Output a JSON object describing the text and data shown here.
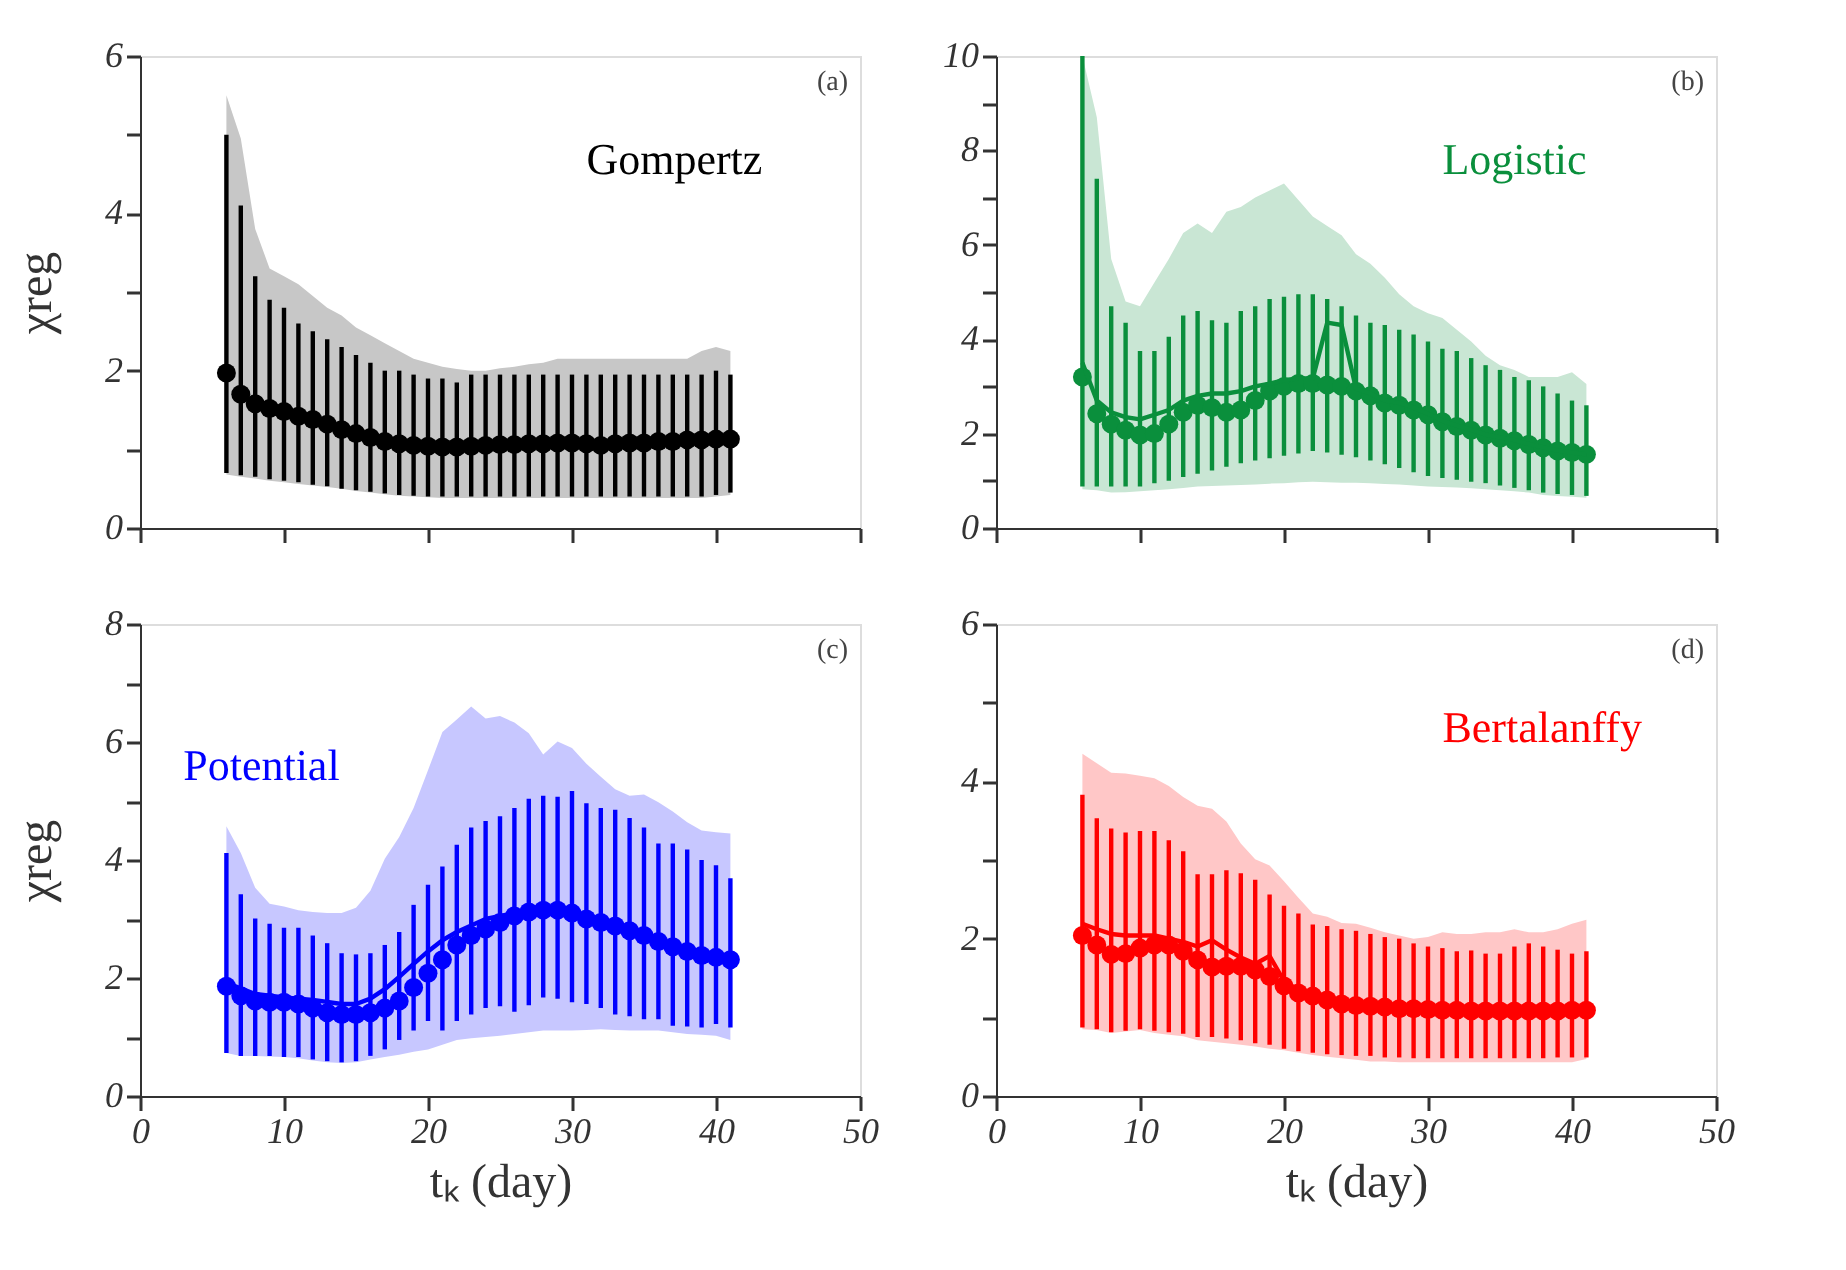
{
  "chart_data": [
    {
      "type": "scatter",
      "ylabel": "χreg",
      "xlim": [
        0,
        50
      ],
      "xticks": [
        0,
        {
          "value": 10,
          "label": null
        },
        {
          "value": 20,
          "label": null
        },
        {
          "value": 30,
          "label": null
        },
        {
          "value": 40,
          "label": null
        },
        {
          "value": 50,
          "label": null
        }
      ],
      "ylim": [
        0,
        6
      ],
      "yticks": [
        0,
        {
          "value": 1,
          "label": null
        },
        2,
        {
          "value": 3,
          "label": null
        },
        4,
        {
          "value": 5,
          "label": null
        },
        6
      ],
      "tick_labels": "y",
      "grid": false,
      "annotations": [
        "(a)"
      ],
      "series": [
        {
          "name": "Gompertz",
          "type": "scatter",
          "marker": "circle",
          "color": "#000000",
          "x": [
            6,
            7,
            8,
            9,
            10,
            11,
            12,
            13,
            14,
            15,
            16,
            17,
            18,
            19,
            20,
            21,
            22,
            23,
            24,
            25,
            26,
            27,
            28,
            29,
            30,
            31,
            32,
            33,
            34,
            35,
            36,
            37,
            38,
            39,
            40,
            41
          ],
          "values": [
            1.97,
            1.7,
            1.58,
            1.52,
            1.48,
            1.42,
            1.38,
            1.32,
            1.25,
            1.2,
            1.15,
            1.1,
            1.07,
            1.05,
            1.04,
            1.03,
            1.03,
            1.04,
            1.05,
            1.06,
            1.06,
            1.07,
            1.07,
            1.08,
            1.08,
            1.07,
            1.05,
            1.07,
            1.08,
            1.08,
            1.1,
            1.1,
            1.12,
            1.12,
            1.13,
            1.13
          ],
          "errors": [
            [
              0.7,
              5.0
            ],
            [
              0.67,
              4.1
            ],
            [
              0.65,
              3.2
            ],
            [
              0.62,
              2.9
            ],
            [
              0.6,
              2.8
            ],
            [
              0.58,
              2.6
            ],
            [
              0.55,
              2.5
            ],
            [
              0.53,
              2.4
            ],
            [
              0.5,
              2.3
            ],
            [
              0.48,
              2.2
            ],
            [
              0.46,
              2.1
            ],
            [
              0.44,
              2.0
            ],
            [
              0.42,
              2.0
            ],
            [
              0.41,
              1.95
            ],
            [
              0.4,
              1.9
            ],
            [
              0.4,
              1.9
            ],
            [
              0.4,
              1.85
            ],
            [
              0.4,
              1.95
            ],
            [
              0.4,
              1.95
            ],
            [
              0.4,
              1.95
            ],
            [
              0.4,
              1.95
            ],
            [
              0.4,
              1.95
            ],
            [
              0.4,
              1.95
            ],
            [
              0.4,
              1.95
            ],
            [
              0.4,
              1.95
            ],
            [
              0.4,
              1.95
            ],
            [
              0.4,
              1.95
            ],
            [
              0.4,
              1.95
            ],
            [
              0.4,
              1.95
            ],
            [
              0.4,
              1.95
            ],
            [
              0.4,
              1.95
            ],
            [
              0.4,
              1.95
            ],
            [
              0.4,
              1.95
            ],
            [
              0.4,
              1.95
            ],
            [
              0.42,
              2.0
            ],
            [
              0.45,
              1.95
            ]
          ],
          "lower": [
            0.68,
            0.65,
            0.63,
            0.6,
            0.58,
            0.56,
            0.54,
            0.52,
            0.5,
            0.47,
            0.45,
            0.43,
            0.41,
            0.4,
            0.39,
            0.38,
            0.38,
            0.38,
            0.38,
            0.38,
            0.38,
            0.38,
            0.38,
            0.38,
            0.38,
            0.38,
            0.38,
            0.38,
            0.38,
            0.38,
            0.38,
            0.38,
            0.38,
            0.38,
            0.4,
            0.42
          ],
          "upper": [
            5.5,
            4.95,
            3.8,
            3.3,
            3.2,
            3.1,
            2.95,
            2.8,
            2.7,
            2.55,
            2.45,
            2.35,
            2.25,
            2.15,
            2.1,
            2.05,
            2.02,
            2.0,
            2.0,
            2.03,
            2.05,
            2.08,
            2.1,
            2.15,
            2.15,
            2.15,
            2.15,
            2.15,
            2.15,
            2.15,
            2.15,
            2.15,
            2.15,
            2.25,
            2.3,
            2.25
          ]
        }
      ]
    },
    {
      "type": "scatter",
      "xlim": [
        0,
        50
      ],
      "xticks": [
        0,
        {
          "value": 10,
          "label": null
        },
        {
          "value": 20,
          "label": null
        },
        {
          "value": 30,
          "label": null
        },
        {
          "value": 40,
          "label": null
        },
        {
          "value": 50,
          "label": null
        }
      ],
      "ylim": [
        0,
        10
      ],
      "yticks": [
        0,
        {
          "value": 1,
          "label": null
        },
        2,
        {
          "value": 3,
          "label": null
        },
        4,
        {
          "value": 5,
          "label": null
        },
        6,
        {
          "value": 7,
          "label": null
        },
        8,
        {
          "value": 9,
          "label": null
        },
        10
      ],
      "tick_labels": "y",
      "grid": false,
      "annotations": [
        "(b)"
      ],
      "series": [
        {
          "name": "Logistic",
          "type": "scatter",
          "marker": "circle",
          "color": "#0a8f3c",
          "x": [
            6,
            7,
            8,
            9,
            10,
            11,
            12,
            13,
            14,
            15,
            16,
            17,
            18,
            19,
            20,
            21,
            22,
            23,
            24,
            25,
            26,
            27,
            28,
            29,
            30,
            31,
            32,
            33,
            34,
            35,
            36,
            37,
            38,
            39,
            40,
            41
          ],
          "values": [
            3.2,
            2.42,
            2.2,
            2.07,
            1.97,
            2.0,
            2.2,
            2.45,
            2.6,
            2.55,
            2.45,
            2.5,
            2.7,
            2.9,
            3.0,
            3.06,
            3.06,
            3.03,
            3.0,
            2.9,
            2.8,
            2.65,
            2.6,
            2.5,
            2.4,
            2.25,
            2.15,
            2.07,
            1.97,
            1.9,
            1.85,
            1.77,
            1.7,
            1.63,
            1.6,
            1.56
          ],
          "errors": [
            [
              0.88,
              10
            ],
            [
              0.88,
              7.4
            ],
            [
              0.88,
              4.7
            ],
            [
              0.88,
              4.35
            ],
            [
              0.88,
              3.75
            ],
            [
              0.95,
              3.75
            ],
            [
              1.0,
              4.05
            ],
            [
              1.08,
              4.5
            ],
            [
              1.15,
              4.6
            ],
            [
              1.22,
              4.4
            ],
            [
              1.3,
              4.35
            ],
            [
              1.37,
              4.6
            ],
            [
              1.43,
              4.7
            ],
            [
              1.48,
              4.85
            ],
            [
              1.53,
              4.9
            ],
            [
              1.58,
              4.95
            ],
            [
              1.63,
              4.95
            ],
            [
              1.6,
              4.85
            ],
            [
              1.55,
              4.7
            ],
            [
              1.5,
              4.5
            ],
            [
              1.43,
              4.35
            ],
            [
              1.35,
              4.3
            ],
            [
              1.27,
              4.2
            ],
            [
              1.18,
              4.1
            ],
            [
              1.1,
              3.95
            ],
            [
              1.06,
              3.8
            ],
            [
              1.02,
              3.75
            ],
            [
              0.98,
              3.6
            ],
            [
              0.95,
              3.45
            ],
            [
              0.9,
              3.35
            ],
            [
              0.85,
              3.2
            ],
            [
              0.8,
              3.13
            ],
            [
              0.75,
              3.0
            ],
            [
              0.72,
              2.85
            ],
            [
              0.7,
              2.7
            ],
            [
              0.68,
              2.6
            ]
          ],
          "lower": [
            0.82,
            0.8,
            0.75,
            0.76,
            0.78,
            0.8,
            0.82,
            0.85,
            0.88,
            0.89,
            0.9,
            0.91,
            0.92,
            0.94,
            0.95,
            0.97,
            0.98,
            0.97,
            0.96,
            0.96,
            0.95,
            0.93,
            0.92,
            0.9,
            0.88,
            0.87,
            0.86,
            0.84,
            0.82,
            0.8,
            0.78,
            0.75,
            0.7,
            0.68,
            0.66,
            0.64
          ],
          "upper": [
            10,
            8.7,
            5.7,
            4.8,
            4.7,
            5.2,
            5.7,
            6.25,
            6.45,
            6.25,
            6.7,
            6.8,
            7.0,
            7.15,
            7.3,
            6.95,
            6.6,
            6.4,
            6.2,
            5.8,
            5.6,
            5.3,
            4.95,
            4.7,
            4.55,
            4.45,
            4.2,
            3.95,
            3.65,
            3.45,
            3.35,
            3.2,
            3.2,
            3.2,
            3.3,
            3.05
          ]
        },
        {
          "type": "line",
          "line_style": "solid",
          "color": "#0a8f3c",
          "x": [
            6,
            7,
            8,
            9,
            10,
            11,
            12,
            13,
            14,
            15,
            16,
            17,
            18,
            19,
            20,
            21,
            22,
            23,
            24,
            25,
            26,
            27,
            28,
            29,
            30,
            31,
            32,
            33,
            34,
            35,
            36,
            37,
            38,
            39,
            40,
            41
          ],
          "values": [
            3.5,
            2.7,
            2.45,
            2.35,
            2.3,
            2.4,
            2.5,
            2.7,
            2.8,
            2.85,
            2.85,
            2.9,
            3.0,
            3.06,
            3.13,
            3.17,
            3.17,
            4.35,
            4.3,
            2.95,
            2.85,
            2.7,
            2.65,
            2.55,
            2.42,
            2.27,
            2.17,
            2.08,
            1.98,
            1.92,
            1.86,
            1.78,
            1.71,
            1.64,
            1.6,
            1.56
          ]
        }
      ]
    },
    {
      "type": "scatter",
      "ylabel": "χreg",
      "xlabel": "tₖ (day)",
      "xlim": [
        0,
        50
      ],
      "xticks": [
        0,
        10,
        20,
        30,
        40,
        50
      ],
      "ylim": [
        0,
        8
      ],
      "yticks": [
        0,
        {
          "value": 1,
          "label": null
        },
        2,
        {
          "value": 3,
          "label": null
        },
        4,
        {
          "value": 5,
          "label": null
        },
        6,
        {
          "value": 7,
          "label": null
        },
        8
      ],
      "grid": false,
      "annotations": [
        "(c)"
      ],
      "series": [
        {
          "name": "Potential",
          "type": "scatter",
          "marker": "circle",
          "color": "#0000ff",
          "x": [
            6,
            7,
            8,
            9,
            10,
            11,
            12,
            13,
            14,
            15,
            16,
            17,
            18,
            19,
            20,
            21,
            22,
            23,
            24,
            25,
            26,
            27,
            28,
            29,
            30,
            31,
            32,
            33,
            34,
            35,
            36,
            37,
            38,
            39,
            40,
            41
          ],
          "values": [
            1.86,
            1.7,
            1.61,
            1.59,
            1.59,
            1.56,
            1.49,
            1.41,
            1.38,
            1.38,
            1.41,
            1.49,
            1.61,
            1.84,
            2.08,
            2.31,
            2.56,
            2.72,
            2.83,
            2.94,
            3.05,
            3.12,
            3.15,
            3.15,
            3.1,
            3.0,
            2.94,
            2.88,
            2.8,
            2.72,
            2.62,
            2.53,
            2.45,
            2.38,
            2.35,
            2.31
          ],
          "errors": [
            [
              0.73,
              4.12
            ],
            [
              0.68,
              3.42
            ],
            [
              0.68,
              3.01
            ],
            [
              0.68,
              2.92
            ],
            [
              0.66,
              2.85
            ],
            [
              0.66,
              2.85
            ],
            [
              0.62,
              2.72
            ],
            [
              0.59,
              2.59
            ],
            [
              0.57,
              2.42
            ],
            [
              0.59,
              2.4
            ],
            [
              0.68,
              2.42
            ],
            [
              0.79,
              2.56
            ],
            [
              0.95,
              2.78
            ],
            [
              1.11,
              3.24
            ],
            [
              1.27,
              3.58
            ],
            [
              1.11,
              3.89
            ],
            [
              1.27,
              4.26
            ],
            [
              1.38,
              4.55
            ],
            [
              1.49,
              4.66
            ],
            [
              1.52,
              4.74
            ],
            [
              1.43,
              4.88
            ],
            [
              1.54,
              5.04
            ],
            [
              1.67,
              5.09
            ],
            [
              1.65,
              5.07
            ],
            [
              1.59,
              5.17
            ],
            [
              1.56,
              4.96
            ],
            [
              1.49,
              4.88
            ],
            [
              1.38,
              4.85
            ],
            [
              1.35,
              4.71
            ],
            [
              1.3,
              4.55
            ],
            [
              1.3,
              4.28
            ],
            [
              1.19,
              4.28
            ],
            [
              1.18,
              4.18
            ],
            [
              1.16,
              4.0
            ],
            [
              1.22,
              3.91
            ],
            [
              1.16,
              3.69
            ]
          ],
          "lower": [
            0.73,
            0.68,
            0.68,
            0.67,
            0.66,
            0.64,
            0.6,
            0.57,
            0.56,
            0.57,
            0.62,
            0.66,
            0.7,
            0.75,
            0.79,
            0.87,
            0.95,
            0.98,
            1.0,
            1.02,
            1.05,
            1.08,
            1.11,
            1.11,
            1.11,
            1.12,
            1.13,
            1.12,
            1.11,
            1.11,
            1.11,
            1.08,
            1.05,
            1.04,
            1.02,
            0.95
          ],
          "upper": [
            4.57,
            4.12,
            3.53,
            3.26,
            3.21,
            3.15,
            3.12,
            3.1,
            3.1,
            3.19,
            3.48,
            4.02,
            4.39,
            4.88,
            5.52,
            6.17,
            6.38,
            6.6,
            6.4,
            6.44,
            6.33,
            6.15,
            5.79,
            6.01,
            5.9,
            5.63,
            5.41,
            5.2,
            5.09,
            5.11,
            4.98,
            4.82,
            4.64,
            4.5,
            4.47,
            4.45
          ]
        },
        {
          "type": "line",
          "line_style": "solid",
          "color": "#0000ff",
          "x": [
            6,
            8,
            10,
            12,
            14,
            15,
            16,
            17,
            18,
            19,
            20,
            21,
            22,
            24,
            26,
            28,
            30,
            32,
            34,
            36,
            38,
            41
          ],
          "values": [
            1.92,
            1.73,
            1.67,
            1.63,
            1.56,
            1.56,
            1.65,
            1.81,
            2.02,
            2.24,
            2.45,
            2.64,
            2.78,
            3.0,
            3.1,
            3.15,
            3.1,
            2.96,
            2.78,
            2.59,
            2.45,
            2.31
          ]
        }
      ]
    },
    {
      "type": "scatter",
      "xlabel": "tₖ (day)",
      "xlim": [
        0,
        50
      ],
      "xticks": [
        0,
        10,
        20,
        30,
        40,
        50
      ],
      "ylim": [
        0,
        6
      ],
      "yticks": [
        0,
        {
          "value": 1,
          "label": null
        },
        2,
        {
          "value": 3,
          "label": null
        },
        4,
        {
          "value": 5,
          "label": null
        },
        6
      ],
      "grid": false,
      "annotations": [
        "(d)"
      ],
      "series": [
        {
          "name": "Bertalanffy",
          "type": "scatter",
          "marker": "circle",
          "color": "#ff0000",
          "x": [
            6,
            7,
            8,
            9,
            10,
            11,
            12,
            13,
            14,
            15,
            16,
            17,
            18,
            19,
            20,
            21,
            22,
            23,
            24,
            25,
            26,
            27,
            28,
            29,
            30,
            31,
            32,
            33,
            34,
            35,
            36,
            37,
            38,
            39,
            40,
            41
          ],
          "values": [
            2.04,
            1.92,
            1.8,
            1.81,
            1.88,
            1.92,
            1.92,
            1.84,
            1.73,
            1.64,
            1.65,
            1.65,
            1.6,
            1.52,
            1.4,
            1.31,
            1.27,
            1.22,
            1.17,
            1.15,
            1.14,
            1.13,
            1.11,
            1.11,
            1.1,
            1.09,
            1.09,
            1.08,
            1.08,
            1.08,
            1.08,
            1.08,
            1.08,
            1.08,
            1.09,
            1.09
          ],
          "errors": [
            [
              0.87,
              3.83
            ],
            [
              0.85,
              3.53
            ],
            [
              0.81,
              3.4
            ],
            [
              0.83,
              3.35
            ],
            [
              0.85,
              3.37
            ],
            [
              0.83,
              3.37
            ],
            [
              0.81,
              3.25
            ],
            [
              0.79,
              3.11
            ],
            [
              0.75,
              2.82
            ],
            [
              0.75,
              2.82
            ],
            [
              0.73,
              2.87
            ],
            [
              0.71,
              2.83
            ],
            [
              0.67,
              2.75
            ],
            [
              0.65,
              2.56
            ],
            [
              0.6,
              2.42
            ],
            [
              0.57,
              2.32
            ],
            [
              0.55,
              2.18
            ],
            [
              0.53,
              2.16
            ],
            [
              0.52,
              2.12
            ],
            [
              0.51,
              2.1
            ],
            [
              0.51,
              2.06
            ],
            [
              0.49,
              2.02
            ],
            [
              0.49,
              2.0
            ],
            [
              0.48,
              1.94
            ],
            [
              0.48,
              1.9
            ],
            [
              0.48,
              1.88
            ],
            [
              0.48,
              1.84
            ],
            [
              0.48,
              1.85
            ],
            [
              0.48,
              1.81
            ],
            [
              0.48,
              1.81
            ],
            [
              0.48,
              1.9
            ],
            [
              0.48,
              1.94
            ],
            [
              0.48,
              1.9
            ],
            [
              0.49,
              1.86
            ],
            [
              0.49,
              1.81
            ],
            [
              0.49,
              1.84
            ]
          ],
          "lower": [
            0.85,
            0.84,
            0.8,
            0.82,
            0.84,
            0.8,
            0.78,
            0.76,
            0.71,
            0.69,
            0.67,
            0.65,
            0.63,
            0.6,
            0.58,
            0.55,
            0.52,
            0.5,
            0.48,
            0.46,
            0.44,
            0.44,
            0.43,
            0.43,
            0.43,
            0.43,
            0.43,
            0.43,
            0.43,
            0.43,
            0.43,
            0.43,
            0.43,
            0.43,
            0.43,
            0.47
          ],
          "upper": [
            4.35,
            4.23,
            4.11,
            4.1,
            4.07,
            4.04,
            3.94,
            3.8,
            3.69,
            3.65,
            3.49,
            3.21,
            3.01,
            2.93,
            2.73,
            2.52,
            2.32,
            2.28,
            2.2,
            2.19,
            2.14,
            2.08,
            2.04,
            2.0,
            2.02,
            2.08,
            2.06,
            2.06,
            2.08,
            2.08,
            2.12,
            2.08,
            2.08,
            2.12,
            2.19,
            2.24
          ]
        },
        {
          "type": "line",
          "line_style": "solid",
          "color": "#ff0000",
          "x": [
            6,
            7,
            8,
            9,
            10,
            11,
            12,
            13,
            14,
            15,
            16,
            17,
            18,
            19,
            20,
            21,
            22,
            25,
            30,
            35,
            41
          ],
          "values": [
            2.19,
            2.12,
            2.06,
            2.04,
            2.04,
            2.04,
            2.0,
            1.96,
            1.9,
            1.98,
            1.86,
            1.76,
            1.68,
            1.78,
            1.46,
            1.35,
            1.27,
            1.15,
            1.1,
            1.08,
            1.09
          ]
        }
      ]
    }
  ]
}
